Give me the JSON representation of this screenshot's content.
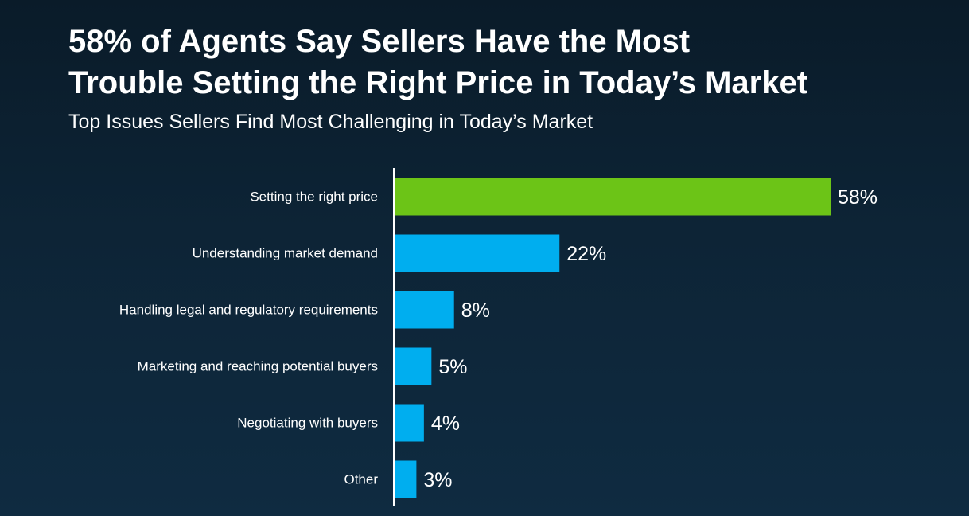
{
  "title_line1": "58% of Agents Say Sellers Have the Most",
  "title_line2": "Trouble Setting the Right Price in Today’s Market",
  "subtitle": "Top Issues Sellers Find Most Challenging in Today’s Market",
  "colors": {
    "highlight": "#6cc417",
    "bar": "#00aeef",
    "axis": "#ffffff",
    "text": "#ffffff"
  },
  "chart_data": {
    "type": "bar",
    "orientation": "horizontal",
    "categories": [
      "Setting the right price",
      "Understanding market demand",
      "Handling legal and regulatory requirements",
      "Marketing and reaching potential buyers",
      "Negotiating with buyers",
      "Other"
    ],
    "values": [
      58,
      22,
      8,
      5,
      4,
      3
    ],
    "value_labels": [
      "58%",
      "22%",
      "8%",
      "5%",
      "4%",
      "3%"
    ],
    "highlighted_index": 0,
    "unit": "%",
    "xlim": [
      0,
      58
    ],
    "grid": false,
    "legend": "none"
  }
}
